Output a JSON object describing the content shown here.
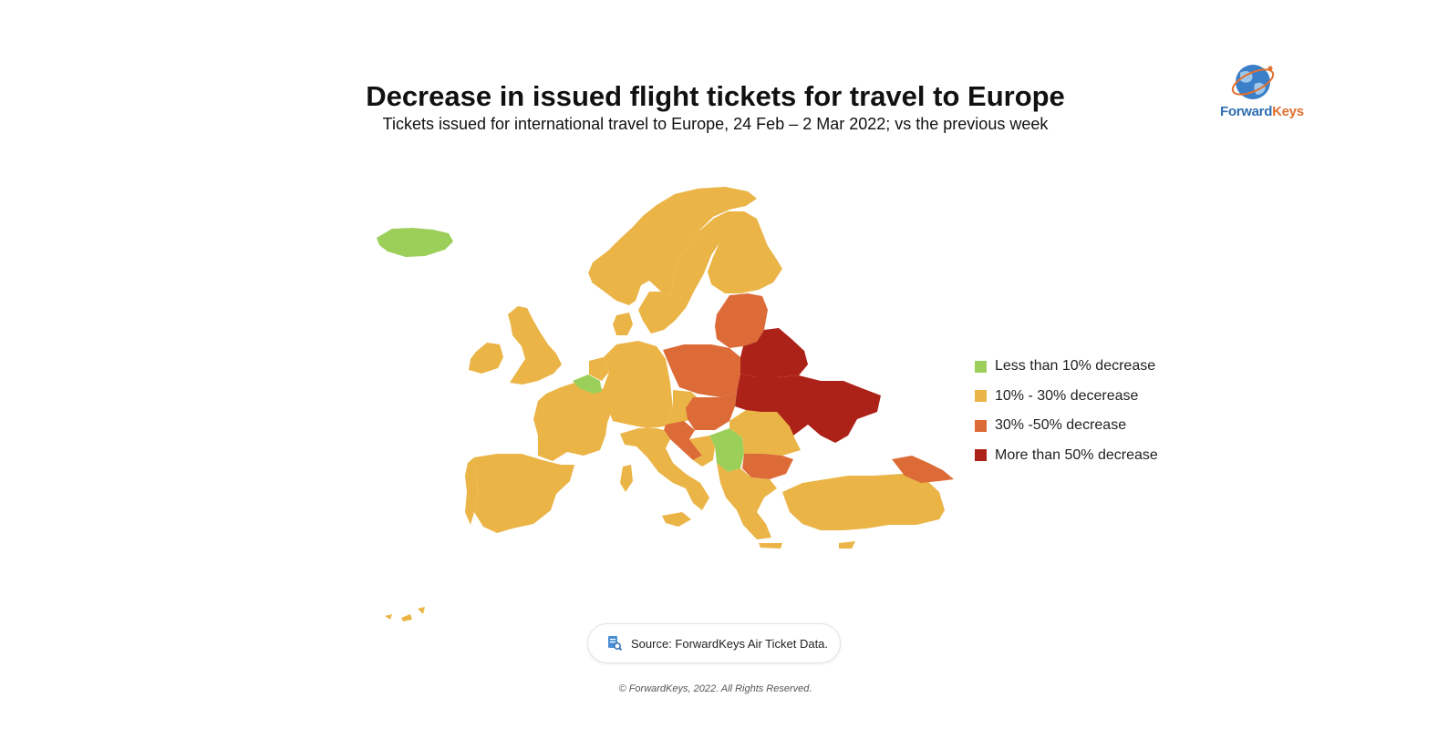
{
  "header": {
    "title": "Decrease in issued flight tickets for travel to Europe",
    "subtitle": "Tickets issued for international travel to Europe, 24 Feb – 2 Mar 2022; vs the previous week"
  },
  "logo": {
    "part1": "Forward",
    "part2": "Keys",
    "part1_color": "#2f6fb3",
    "part2_color": "#e0702f"
  },
  "legend": {
    "items": [
      {
        "label": "Less than 10% decrease",
        "color": "#9ccf5a"
      },
      {
        "label": "10% - 30% decerease",
        "color": "#ebb446"
      },
      {
        "label": "30% -50% decrease",
        "color": "#dc6b38"
      },
      {
        "label": "More than 50% decrease",
        "color": "#ad2218"
      }
    ]
  },
  "map": {
    "regions": [
      {
        "name": "Iceland",
        "category": "Less than 10% decrease"
      },
      {
        "name": "Belgium",
        "category": "Less than 10% decrease"
      },
      {
        "name": "Serbia",
        "category": "Less than 10% decrease"
      },
      {
        "name": "Norway",
        "category": "10% - 30% decerease"
      },
      {
        "name": "Sweden",
        "category": "10% - 30% decerease"
      },
      {
        "name": "Finland",
        "category": "10% - 30% decerease"
      },
      {
        "name": "United Kingdom",
        "category": "10% - 30% decerease"
      },
      {
        "name": "Ireland",
        "category": "10% - 30% decerease"
      },
      {
        "name": "France",
        "category": "10% - 30% decerease"
      },
      {
        "name": "Spain",
        "category": "10% - 30% decerease"
      },
      {
        "name": "Portugal",
        "category": "10% - 30% decerease"
      },
      {
        "name": "Germany",
        "category": "10% - 30% decerease"
      },
      {
        "name": "Italy",
        "category": "10% - 30% decerease"
      },
      {
        "name": "Romania",
        "category": "10% - 30% decerease"
      },
      {
        "name": "Greece",
        "category": "10% - 30% decerease"
      },
      {
        "name": "Turkey",
        "category": "10% - 30% decerease"
      },
      {
        "name": "Poland",
        "category": "30% -50% decrease"
      },
      {
        "name": "Baltic States",
        "category": "30% -50% decrease"
      },
      {
        "name": "Hungary",
        "category": "30% -50% decrease"
      },
      {
        "name": "Bulgaria",
        "category": "30% -50% decrease"
      },
      {
        "name": "Croatia",
        "category": "30% -50% decrease"
      },
      {
        "name": "Georgia",
        "category": "30% -50% decrease"
      },
      {
        "name": "Belarus",
        "category": "More than 50% decrease"
      },
      {
        "name": "Ukraine",
        "category": "More than 50% decrease"
      }
    ]
  },
  "footer": {
    "source": "Source: ForwardKeys Air Ticket Data.",
    "copyright": "© ForwardKeys, 2022. All Rights Reserved."
  }
}
